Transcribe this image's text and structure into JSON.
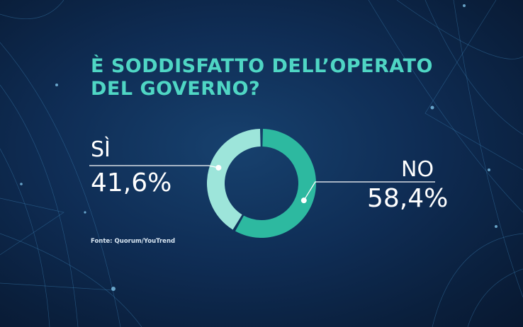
{
  "header": {
    "title_line1": "È SODDISFATTO DELL’OPERATO",
    "title_line2": "DEL GOVERNO?"
  },
  "source": "Fonte: Quorum/YouTrend",
  "chart_data": {
    "type": "pie",
    "donut": true,
    "title": "È SODDISFATTO DELL’OPERATO DEL GOVERNO?",
    "categories": [
      "SÌ",
      "NO"
    ],
    "values": [
      41.6,
      58.4
    ],
    "value_labels": [
      "41,6%",
      "58,4%"
    ],
    "colors": [
      "#9de5da",
      "#2db9a0"
    ],
    "legend": "none"
  },
  "colors": {
    "accent": "#4fd6c4",
    "background": "#0f2d55",
    "text": "#ffffff"
  }
}
